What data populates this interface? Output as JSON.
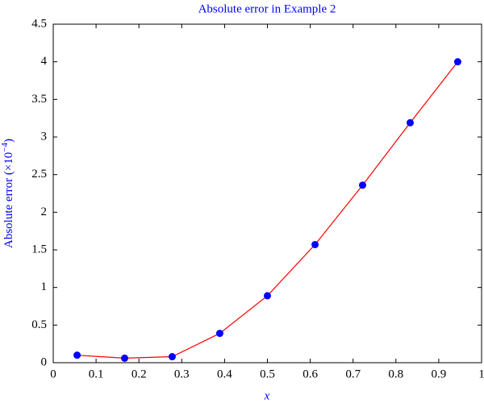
{
  "chart_data": {
    "type": "line",
    "title": "Absolute error in Example 2",
    "xlabel": "x",
    "ylabel_parts": [
      "Absolute error (×10",
      "−4",
      ")"
    ],
    "x": [
      0.0557,
      0.1667,
      0.2777,
      0.3888,
      0.5,
      0.6112,
      0.7222,
      0.8333,
      0.9443
    ],
    "series": [
      {
        "color": "#ff0000",
        "marker_color": "#0000ff",
        "values": [
          0.1,
          0.06,
          0.08,
          0.39,
          0.89,
          1.57,
          2.36,
          3.19,
          4.0
        ]
      }
    ],
    "xlim": [
      0,
      1
    ],
    "xticks": [
      0,
      0.1,
      0.2,
      0.3,
      0.4,
      0.5,
      0.6,
      0.7,
      0.8,
      0.9,
      1
    ],
    "ylim": [
      0,
      4.5
    ],
    "yticks": [
      0,
      0.5,
      1,
      1.5,
      2,
      2.5,
      3,
      3.5,
      4,
      4.5
    ]
  }
}
